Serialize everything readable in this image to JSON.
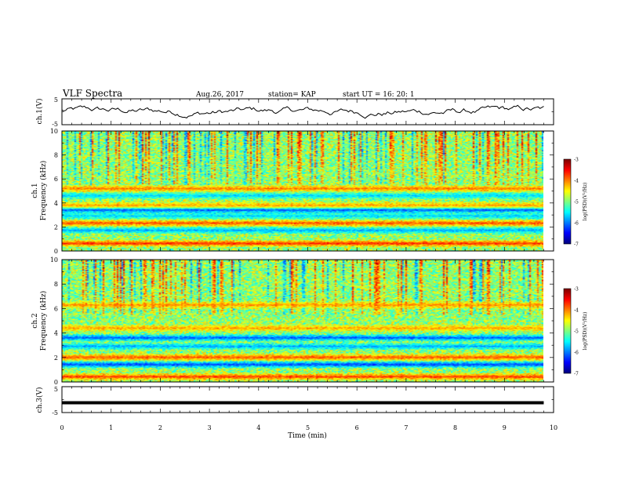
{
  "header": {
    "title": "VLF Spectra",
    "date": "Aug.26, 2017",
    "station": "station= KAP",
    "start": "start  UT  =   16: 20: 1"
  },
  "chart_data": [
    {
      "type": "line",
      "panel": "ch1-waveform",
      "ylabel": "ch.1(V)",
      "xlim": [
        0,
        10
      ],
      "ylim": [
        -5,
        5
      ],
      "yticks": [
        "5",
        "-5"
      ],
      "series": [
        {
          "color": "#000000",
          "description_of_shape": "noisy oscillation between about -2.5 and 3 V"
        }
      ],
      "sample_trace": {
        "min": -2.6,
        "max": 3.0,
        "points": 260
      }
    },
    {
      "type": "heatmap",
      "panel": "ch1-spectrogram",
      "ylabel_channel": "ch.1",
      "ylabel": "Frequency  (kHz)",
      "xlim": [
        0,
        9.8
      ],
      "ylim": [
        0,
        10
      ],
      "yticks": [
        "0",
        "2",
        "4",
        "6",
        "8",
        "10"
      ],
      "colorbar": {
        "label": "log(PSD)(V²/Hz)",
        "ticks": [
          "-3",
          "-4",
          "-5",
          "-6",
          "-7"
        ],
        "range": [
          -7,
          -3
        ]
      },
      "bands": [
        {
          "freq_khz": 0.6,
          "level": -3.4
        },
        {
          "freq_khz": 1.7,
          "level": -6.0
        },
        {
          "freq_khz": 2.3,
          "level": -3.6
        },
        {
          "freq_khz": 2.9,
          "level": -5.8
        },
        {
          "freq_khz": 3.4,
          "level": -6.4
        },
        {
          "freq_khz": 3.8,
          "level": -4.0
        },
        {
          "freq_khz": 4.6,
          "level": -5.8
        },
        {
          "freq_khz": 5.2,
          "level": -3.8
        }
      ]
    },
    {
      "type": "heatmap",
      "panel": "ch2-spectrogram",
      "ylabel_channel": "ch.2",
      "ylabel": "Frequency  (kHz)",
      "xlim": [
        0,
        9.8
      ],
      "ylim": [
        0,
        10
      ],
      "yticks": [
        "0",
        "2",
        "4",
        "6",
        "8",
        "10"
      ],
      "colorbar": {
        "label": "log(PSD)(V²/Hz)",
        "ticks": [
          "-3",
          "-4",
          "-5",
          "-6",
          "-7"
        ],
        "range": [
          -7,
          -3
        ]
      },
      "bands": [
        {
          "freq_khz": 0.4,
          "level": -3.5
        },
        {
          "freq_khz": 1.4,
          "level": -6.5
        },
        {
          "freq_khz": 2.0,
          "level": -3.6
        },
        {
          "freq_khz": 2.9,
          "level": -6.0
        },
        {
          "freq_khz": 3.6,
          "level": -6.4
        },
        {
          "freq_khz": 4.4,
          "level": -4.0
        },
        {
          "freq_khz": 6.3,
          "level": -3.9
        }
      ]
    },
    {
      "type": "line",
      "panel": "ch3-waveform",
      "ylabel": "ch.3(V)",
      "xlabel": "Time  (min)",
      "xlim": [
        0,
        10
      ],
      "ylim": [
        -5,
        5
      ],
      "yticks": [
        "5",
        "-5"
      ],
      "xticks": [
        "0",
        "1",
        "2",
        "3",
        "4",
        "5",
        "6",
        "7",
        "8",
        "9",
        "10"
      ],
      "series": [
        {
          "color": "#000000",
          "constant_value": -1.2,
          "x_end": 9.8
        }
      ]
    }
  ]
}
